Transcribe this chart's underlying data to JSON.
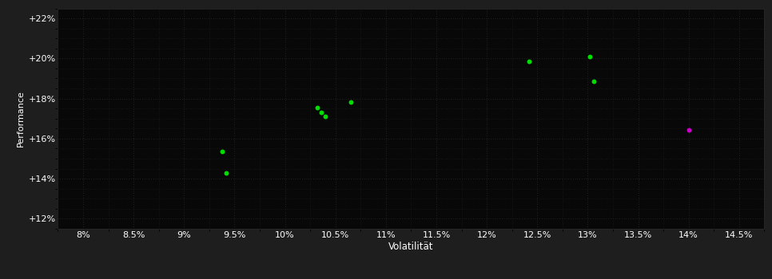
{
  "title": "",
  "xlabel": "Volatilität",
  "ylabel": "Performance",
  "background_color": "#1e1e1e",
  "plot_bg_color": "#080808",
  "grid_color": "#3a3a3a",
  "text_color": "#ffffff",
  "green_points": [
    [
      9.38,
      15.35
    ],
    [
      9.42,
      14.3
    ],
    [
      10.32,
      17.55
    ],
    [
      10.36,
      17.3
    ],
    [
      10.4,
      17.12
    ],
    [
      10.65,
      17.82
    ],
    [
      12.42,
      19.85
    ],
    [
      13.02,
      20.1
    ],
    [
      13.06,
      18.85
    ]
  ],
  "magenta_points": [
    [
      14.0,
      16.45
    ]
  ],
  "xlim": [
    7.75,
    14.75
  ],
  "ylim": [
    11.5,
    22.5
  ],
  "xticks": [
    8.0,
    8.5,
    9.0,
    9.5,
    10.0,
    10.5,
    11.0,
    11.5,
    12.0,
    12.5,
    13.0,
    13.5,
    14.0,
    14.5
  ],
  "yticks": [
    12,
    14,
    16,
    18,
    20,
    22
  ],
  "marker_size": 18,
  "tick_fontsize": 8,
  "label_fontsize": 8.5,
  "ylabel_fontsize": 8
}
